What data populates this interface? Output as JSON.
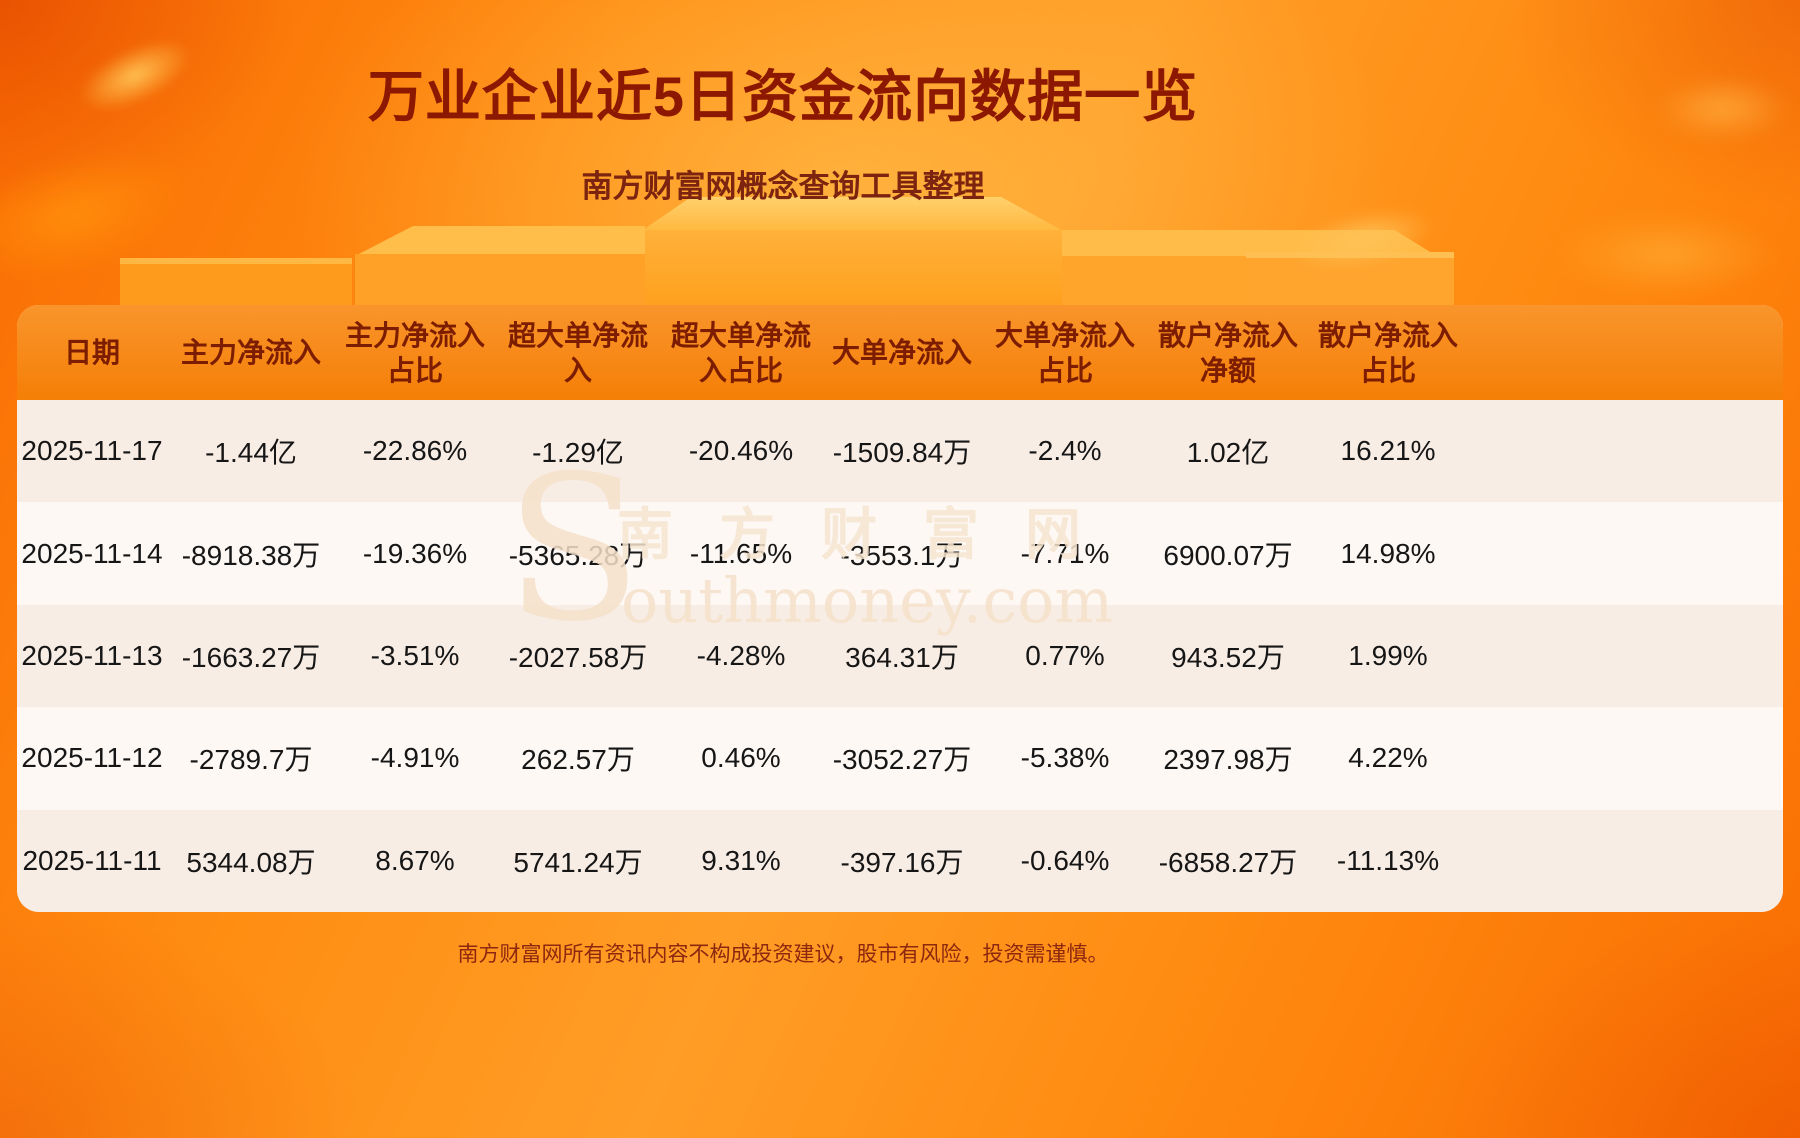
{
  "page": {
    "title": "万业企业近5日资金流向数据一览",
    "subtitle": "南方财富网概念查询工具整理",
    "footer": "南方财富网所有资讯内容不构成投资建议，股市有风险，投资需谨慎。",
    "watermark": {
      "initial": "S",
      "cn": "南方财富网",
      "en": "outhmoney.com"
    }
  },
  "chart_data": {
    "type": "table",
    "title": "万业企业近5日资金流向数据一览",
    "columns": [
      "日期",
      "主力净流入",
      "主力净流入\n占比",
      "超大单净流\n入",
      "超大单净流\n入占比",
      "大单净流入",
      "大单净流入\n占比",
      "散户净流入\n净额",
      "散户净流入\n占比"
    ],
    "rows": [
      [
        "2025-11-17",
        "-1.44亿",
        "-22.86%",
        "-1.29亿",
        "-20.46%",
        "-1509.84万",
        "-2.4%",
        "1.02亿",
        "16.21%"
      ],
      [
        "2025-11-14",
        "-8918.38万",
        "-19.36%",
        "-5365.28万",
        "-11.65%",
        "-3553.1万",
        "-7.71%",
        "6900.07万",
        "14.98%"
      ],
      [
        "2025-11-13",
        "-1663.27万",
        "-3.51%",
        "-2027.58万",
        "-4.28%",
        "364.31万",
        "0.77%",
        "943.52万",
        "1.99%"
      ],
      [
        "2025-11-12",
        "-2789.7万",
        "-4.91%",
        "262.57万",
        "0.46%",
        "-3052.27万",
        "-5.38%",
        "2397.98万",
        "4.22%"
      ],
      [
        "2025-11-11",
        "5344.08万",
        "8.67%",
        "5741.24万",
        "9.31%",
        "-397.16万",
        "-0.64%",
        "-6858.27万",
        "-11.13%"
      ]
    ]
  },
  "colors": {
    "title_text": "#8d1801",
    "header_text": "#7c1c00",
    "body_text": "#161616",
    "background_orange": "#ff8d12",
    "header_band": "#f57f07",
    "row_odd": "#f8ede5",
    "row_even": "#fdf8f4"
  }
}
